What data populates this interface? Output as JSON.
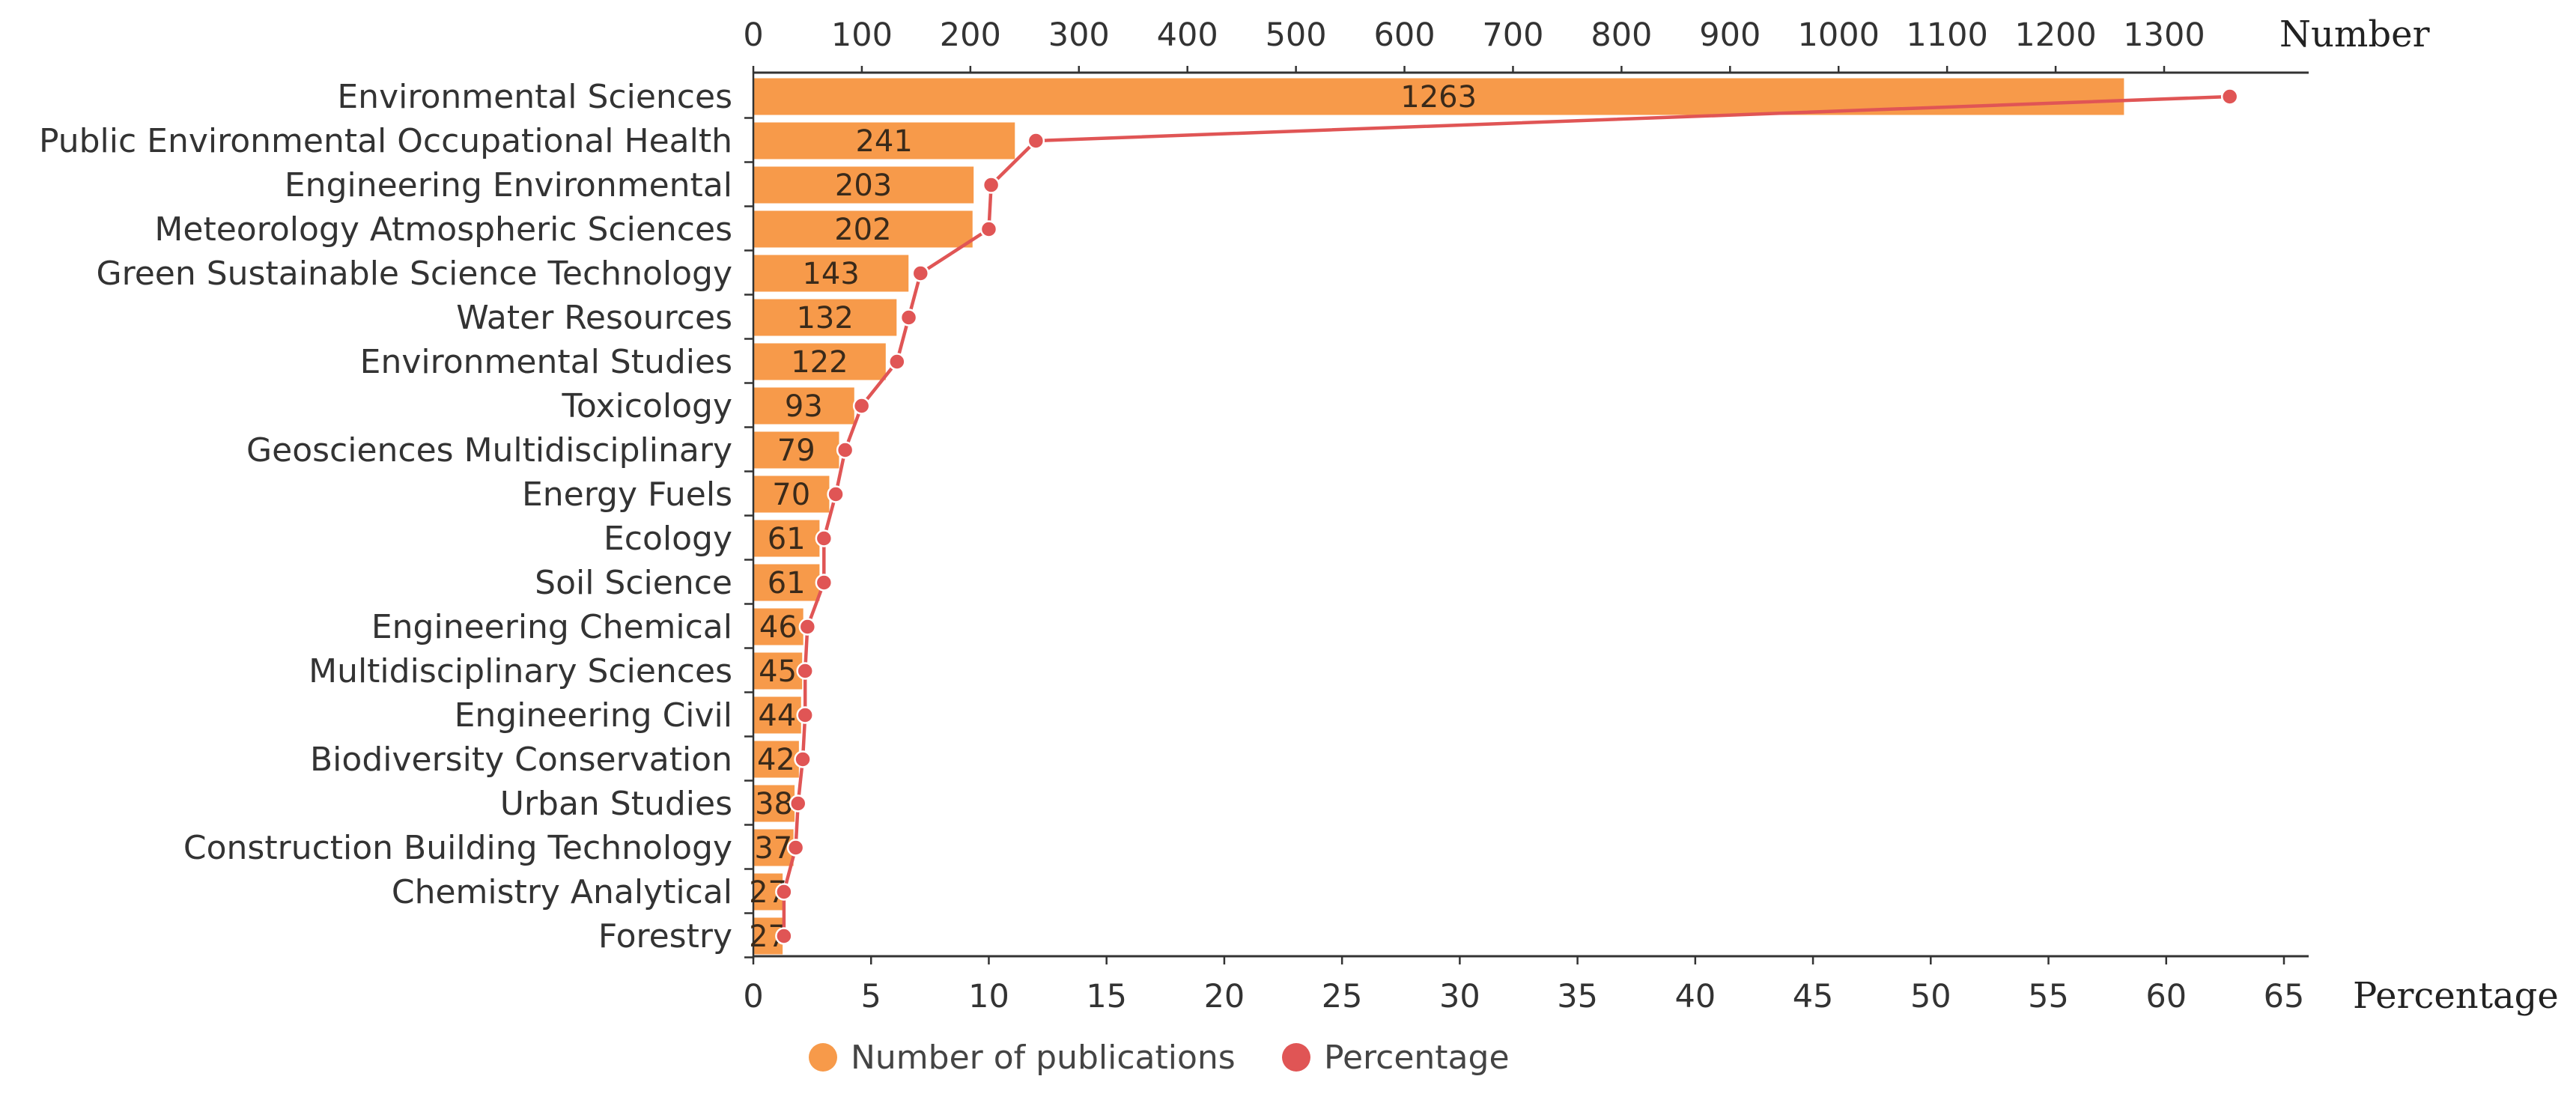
{
  "chart_data": {
    "type": "bar",
    "orientation": "horizontal",
    "categories": [
      "Environmental Sciences",
      "Public Environmental Occupational Health",
      "Engineering Environmental",
      "Meteorology Atmospheric Sciences",
      "Green Sustainable Science Technology",
      "Water Resources",
      "Environmental Studies",
      "Toxicology",
      "Geosciences Multidisciplinary",
      "Energy Fuels",
      "Ecology",
      "Soil Science",
      "Engineering Chemical",
      "Multidisciplinary Sciences",
      "Engineering Civil",
      "Biodiversity Conservation",
      "Urban Studies",
      "Construction Building Technology",
      "Chemistry Analytical",
      "Forestry"
    ],
    "series": [
      {
        "name": "Number of publications",
        "type": "bar",
        "axis": "top",
        "color": "#f79a4a",
        "values": [
          1263,
          241,
          203,
          202,
          143,
          132,
          122,
          93,
          79,
          70,
          61,
          61,
          46,
          45,
          44,
          42,
          38,
          37,
          27,
          27
        ]
      },
      {
        "name": "Percentage",
        "type": "line",
        "axis": "bottom",
        "color": "#e05555",
        "values": [
          62.7,
          12.0,
          10.1,
          10.0,
          7.1,
          6.6,
          6.1,
          4.6,
          3.9,
          3.5,
          3.0,
          3.0,
          2.3,
          2.2,
          2.2,
          2.1,
          1.9,
          1.8,
          1.3,
          1.3
        ]
      }
    ],
    "top_axis": {
      "label": "Number",
      "range": [
        0,
        1300
      ],
      "ticks": [
        "0",
        "100",
        "200",
        "300",
        "400",
        "500",
        "600",
        "700",
        "800",
        "900",
        "1000",
        "1100",
        "1200",
        "1300"
      ]
    },
    "bottom_axis": {
      "label": "Percentage",
      "range": [
        0,
        65
      ],
      "ticks": [
        "0",
        "5",
        "10",
        "15",
        "20",
        "25",
        "30",
        "35",
        "40",
        "45",
        "50",
        "55",
        "60",
        "65"
      ]
    },
    "grid": false,
    "legend": {
      "position": "bottom-center",
      "items": [
        "Number of publications",
        "Percentage"
      ]
    }
  }
}
